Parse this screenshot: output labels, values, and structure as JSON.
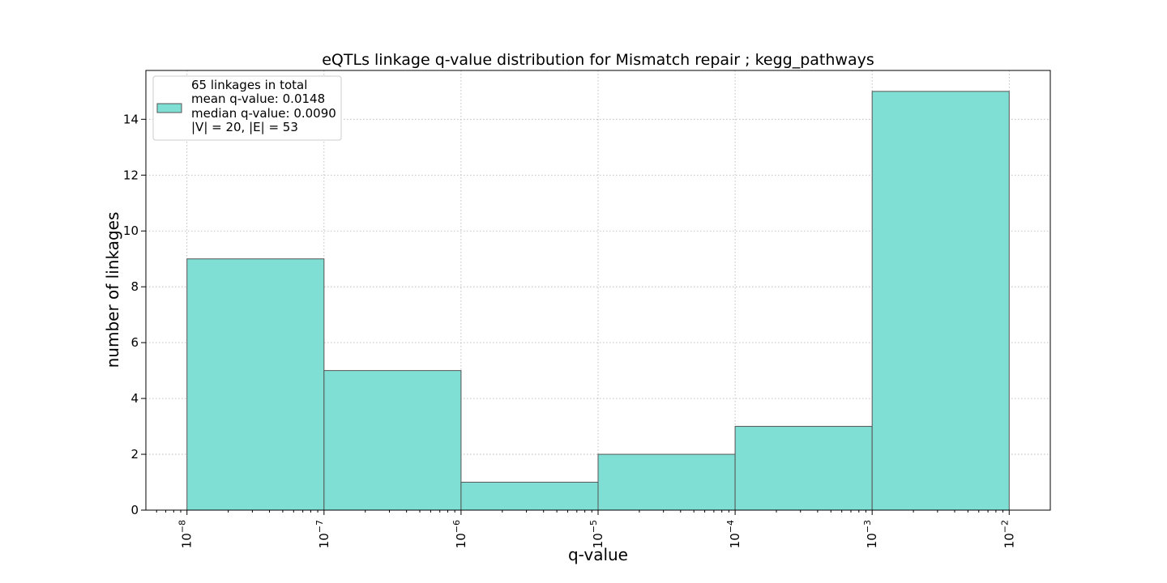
{
  "chart_data": {
    "type": "bar",
    "title": "eQTLs linkage q-value distribution for Mismatch repair ; kegg_pathways",
    "xlabel": "q-value",
    "ylabel": "number of linkages",
    "x_scale": "log",
    "x_range_exponents": [
      -8.3,
      -1.7
    ],
    "ylim": [
      0,
      15.75
    ],
    "grid": true,
    "bar_color": "#7fdfd4",
    "bins": [
      {
        "from_exponent": -8,
        "to_exponent": -7,
        "value": 9
      },
      {
        "from_exponent": -7,
        "to_exponent": -6,
        "value": 5
      },
      {
        "from_exponent": -6,
        "to_exponent": -5,
        "value": 1
      },
      {
        "from_exponent": -5,
        "to_exponent": -4,
        "value": 2
      },
      {
        "from_exponent": -4,
        "to_exponent": -3,
        "value": 3
      },
      {
        "from_exponent": -3,
        "to_exponent": -2,
        "value": 15
      }
    ],
    "x_ticks": [
      {
        "base": "10",
        "exp": "−8",
        "value": -8
      },
      {
        "base": "10",
        "exp": "−7",
        "value": -7
      },
      {
        "base": "10",
        "exp": "−6",
        "value": -6
      },
      {
        "base": "10",
        "exp": "−5",
        "value": -5
      },
      {
        "base": "10",
        "exp": "−4",
        "value": -4
      },
      {
        "base": "10",
        "exp": "−3",
        "value": -3
      },
      {
        "base": "10",
        "exp": "−2",
        "value": -2
      }
    ],
    "y_ticks": [
      0,
      2,
      4,
      6,
      8,
      10,
      12,
      14
    ],
    "legend": {
      "placement": "top-left",
      "lines": [
        "65 linkages in total",
        "mean q-value: 0.0148",
        "median q-value: 0.0090",
        "|V| = 20, |E| = 53"
      ]
    }
  }
}
